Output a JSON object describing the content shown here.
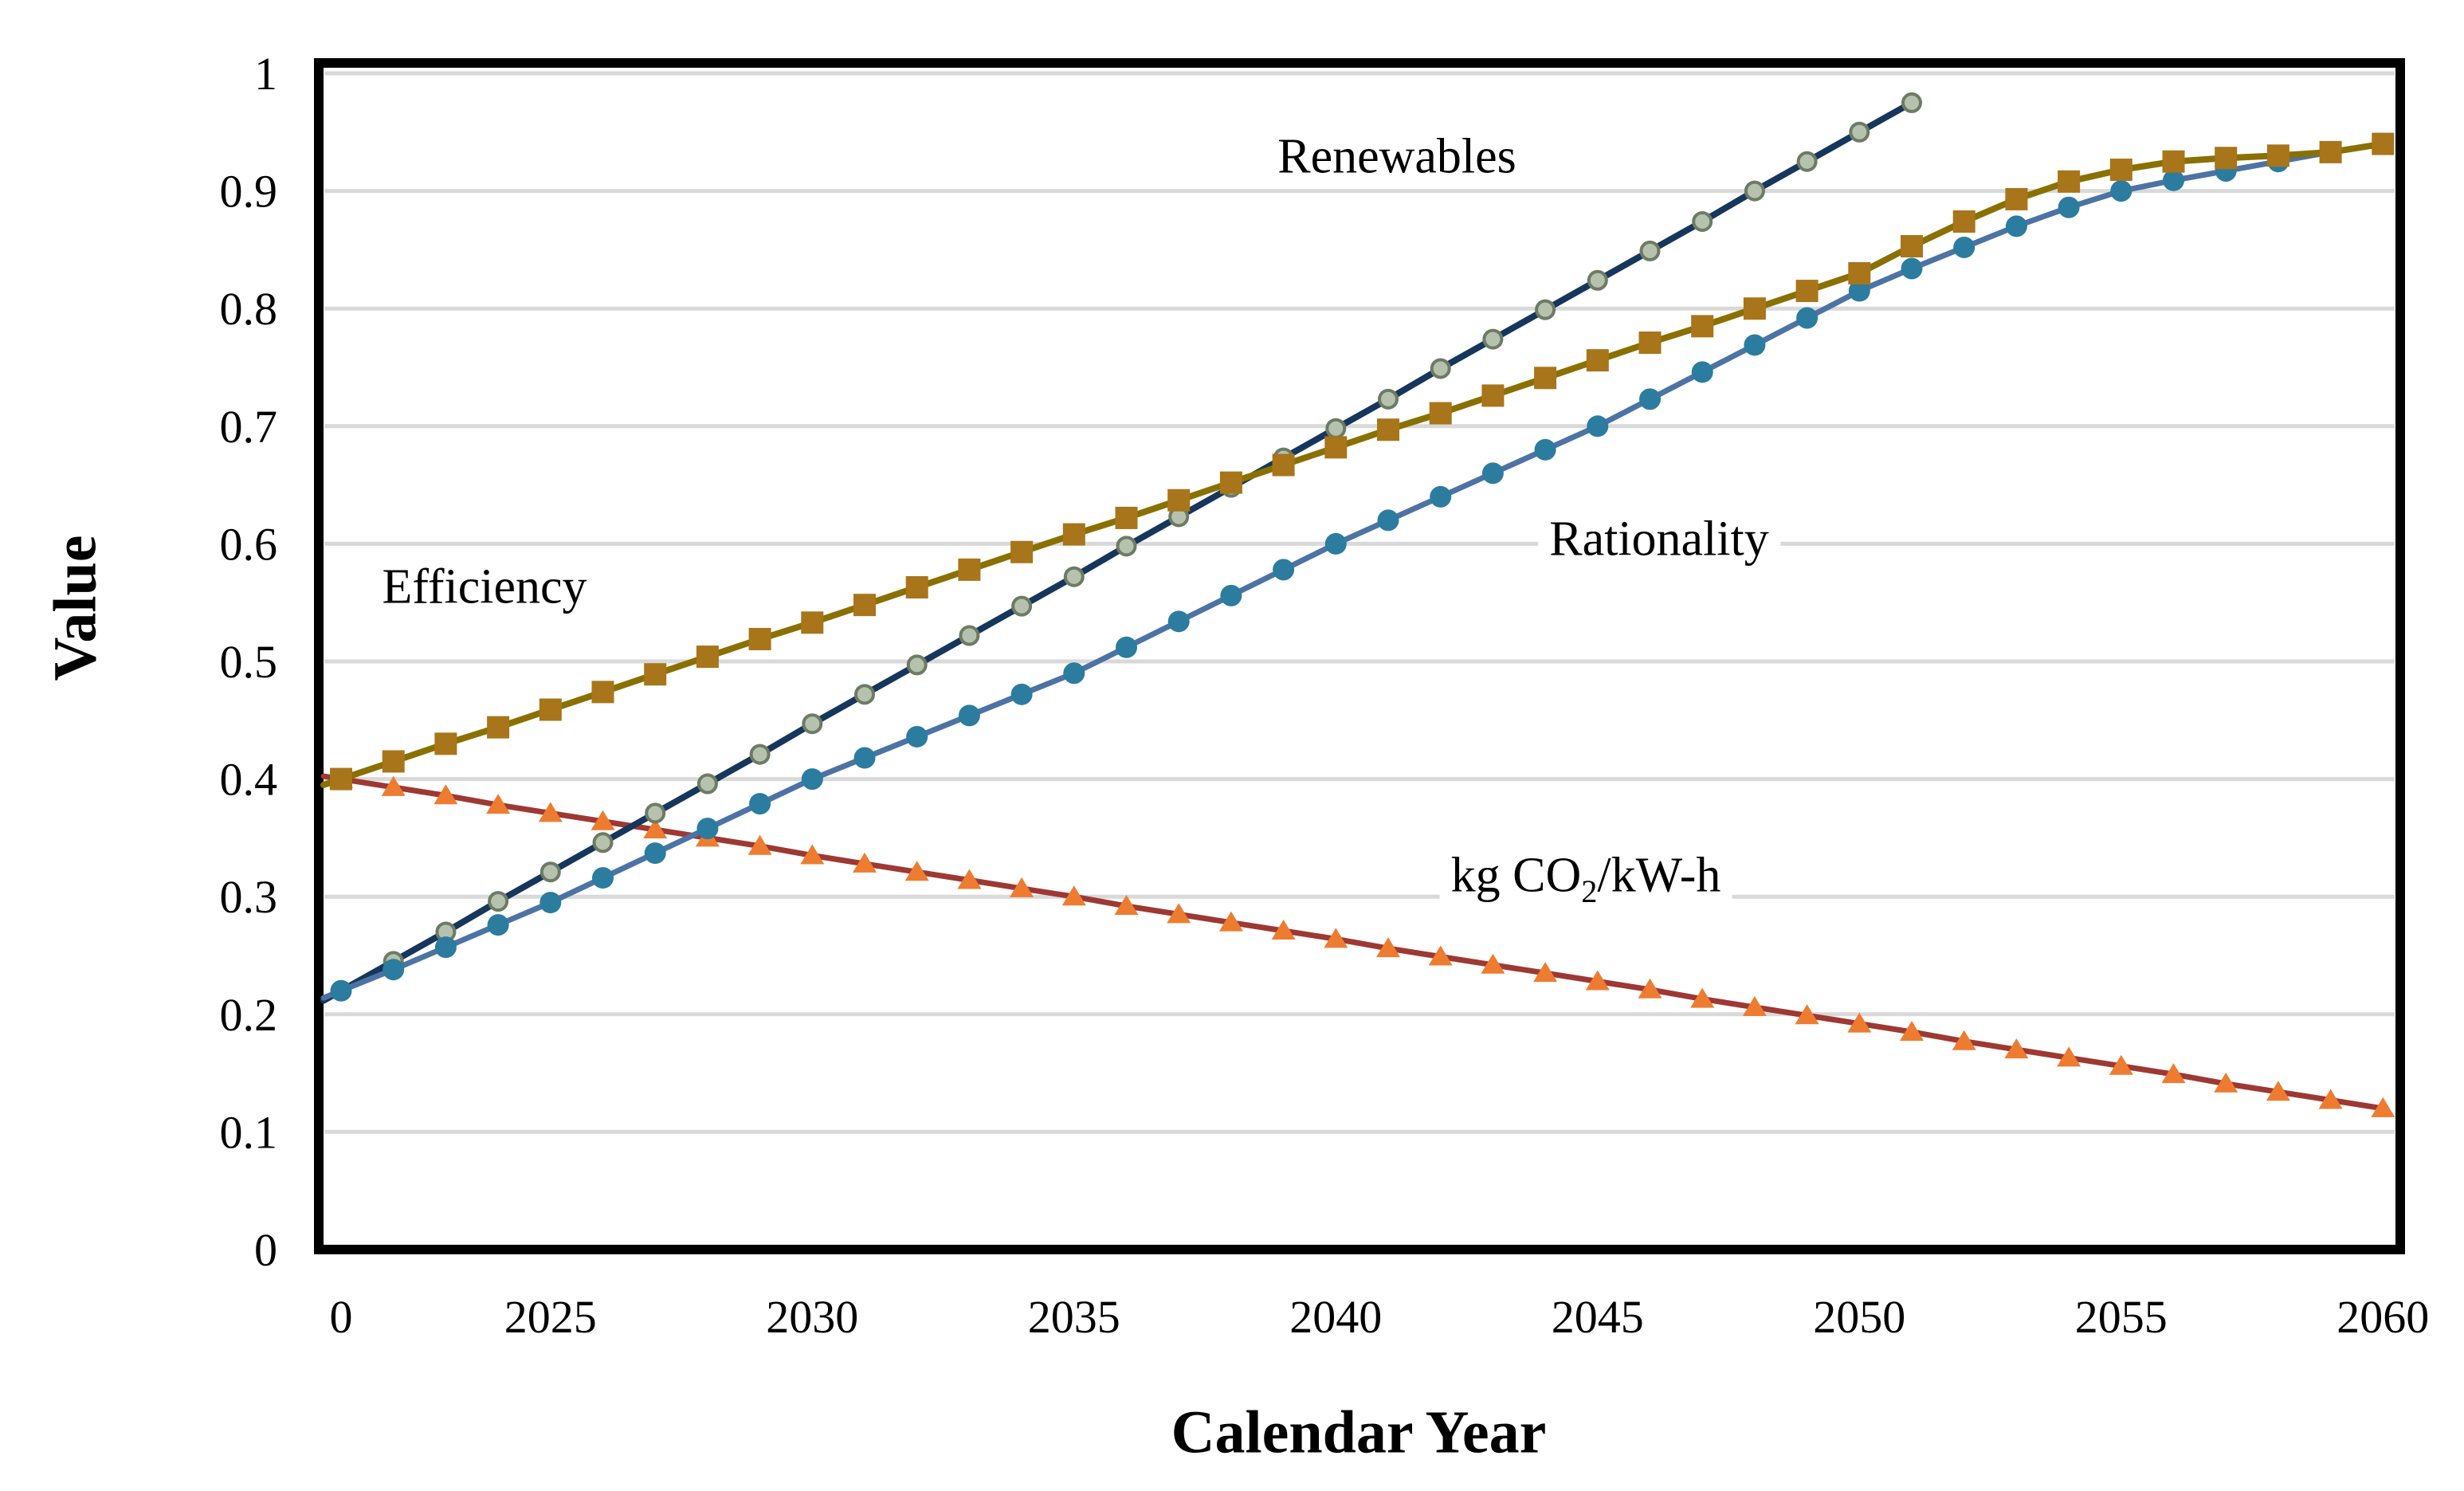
{
  "chart_data": {
    "type": "line",
    "title": "",
    "xlabel": "Calendar Year",
    "ylabel": "Value",
    "grid": "horizontal",
    "background": "#ffffff",
    "grid_color": "#d9d9d9",
    "border_color": "#000000",
    "ylim": [
      0,
      1
    ],
    "x_axis": {
      "start_year": 2021,
      "end_year": 2060,
      "ticks": [
        {
          "label": "0",
          "year": 2021
        },
        {
          "label": "2025",
          "year": 2025
        },
        {
          "label": "2030",
          "year": 2030
        },
        {
          "label": "2035",
          "year": 2035
        },
        {
          "label": "2040",
          "year": 2040
        },
        {
          "label": "2045",
          "year": 2045
        },
        {
          "label": "2050",
          "year": 2050
        },
        {
          "label": "2055",
          "year": 2055
        },
        {
          "label": "2060",
          "year": 2060
        }
      ]
    },
    "y_axis": {
      "ticks": [
        {
          "label": "1",
          "value": 1.0
        },
        {
          "label": "0.9",
          "value": 0.9
        },
        {
          "label": "0.8",
          "value": 0.8
        },
        {
          "label": "0.7",
          "value": 0.7
        },
        {
          "label": "0.6",
          "value": 0.6
        },
        {
          "label": "0.5",
          "value": 0.5
        },
        {
          "label": "0.4",
          "value": 0.4
        },
        {
          "label": "0.3",
          "value": 0.3
        },
        {
          "label": "0.2",
          "value": 0.2
        },
        {
          "label": "0.1",
          "value": 0.1
        },
        {
          "label": "0",
          "value": 0.0
        }
      ]
    },
    "series": [
      {
        "name": "kg CO2/kW-h",
        "start_year": 2021,
        "line_color": "#9e3833",
        "marker": "triangle",
        "marker_fill": "#ee7c30",
        "values": [
          0.4,
          0.393,
          0.386,
          0.378,
          0.371,
          0.364,
          0.357,
          0.35,
          0.343,
          0.335,
          0.328,
          0.321,
          0.314,
          0.307,
          0.3,
          0.292,
          0.285,
          0.278,
          0.271,
          0.264,
          0.256,
          0.249,
          0.242,
          0.235,
          0.228,
          0.221,
          0.213,
          0.206,
          0.199,
          0.192,
          0.185,
          0.177,
          0.17,
          0.163,
          0.156,
          0.149,
          0.141,
          0.134,
          0.127,
          0.12
        ]
      },
      {
        "name": "Renewables",
        "start_year": 2021,
        "line_color": "#16365c",
        "marker": "circle",
        "marker_fill": "#b6c2ae",
        "marker_stroke": "#6d7b64",
        "values": [
          0.22,
          0.245,
          0.27,
          0.296,
          0.321,
          0.346,
          0.371,
          0.396,
          0.421,
          0.447,
          0.472,
          0.497,
          0.522,
          0.547,
          0.572,
          0.598,
          0.623,
          0.648,
          0.673,
          0.698,
          0.723,
          0.749,
          0.774,
          0.799,
          0.824,
          0.849,
          0.874,
          0.9,
          0.925,
          0.95,
          0.975
        ]
      },
      {
        "name": "Rationality",
        "start_year": 2021,
        "line_color": "#4c73a4",
        "marker": "circle",
        "marker_fill": "#2b7c9e",
        "values": [
          0.22,
          0.238,
          0.257,
          0.276,
          0.295,
          0.316,
          0.337,
          0.358,
          0.379,
          0.4,
          0.418,
          0.436,
          0.454,
          0.472,
          0.49,
          0.512,
          0.534,
          0.556,
          0.578,
          0.6,
          0.62,
          0.64,
          0.66,
          0.68,
          0.7,
          0.723,
          0.746,
          0.769,
          0.792,
          0.815,
          0.834,
          0.852,
          0.87,
          0.886,
          0.9,
          0.909,
          0.917,
          0.925,
          0.933,
          0.94
        ]
      },
      {
        "name": "Efficiency",
        "start_year": 2021,
        "line_color": "#8a7000",
        "marker": "square",
        "marker_fill": "#a8751a",
        "values": [
          0.4,
          0.415,
          0.43,
          0.444,
          0.459,
          0.474,
          0.489,
          0.504,
          0.519,
          0.533,
          0.548,
          0.563,
          0.578,
          0.593,
          0.608,
          0.622,
          0.637,
          0.652,
          0.667,
          0.682,
          0.697,
          0.711,
          0.726,
          0.741,
          0.756,
          0.771,
          0.785,
          0.8,
          0.815,
          0.83,
          0.853,
          0.874,
          0.893,
          0.908,
          0.918,
          0.925,
          0.928,
          0.93,
          0.933,
          0.94
        ]
      }
    ],
    "annotations": [
      {
        "text": "Renewables"
      },
      {
        "text": "Efficiency"
      },
      {
        "text": "Rationality"
      },
      {
        "pre": "kg CO",
        "sub": "2",
        "post": "/kW-h"
      }
    ]
  }
}
